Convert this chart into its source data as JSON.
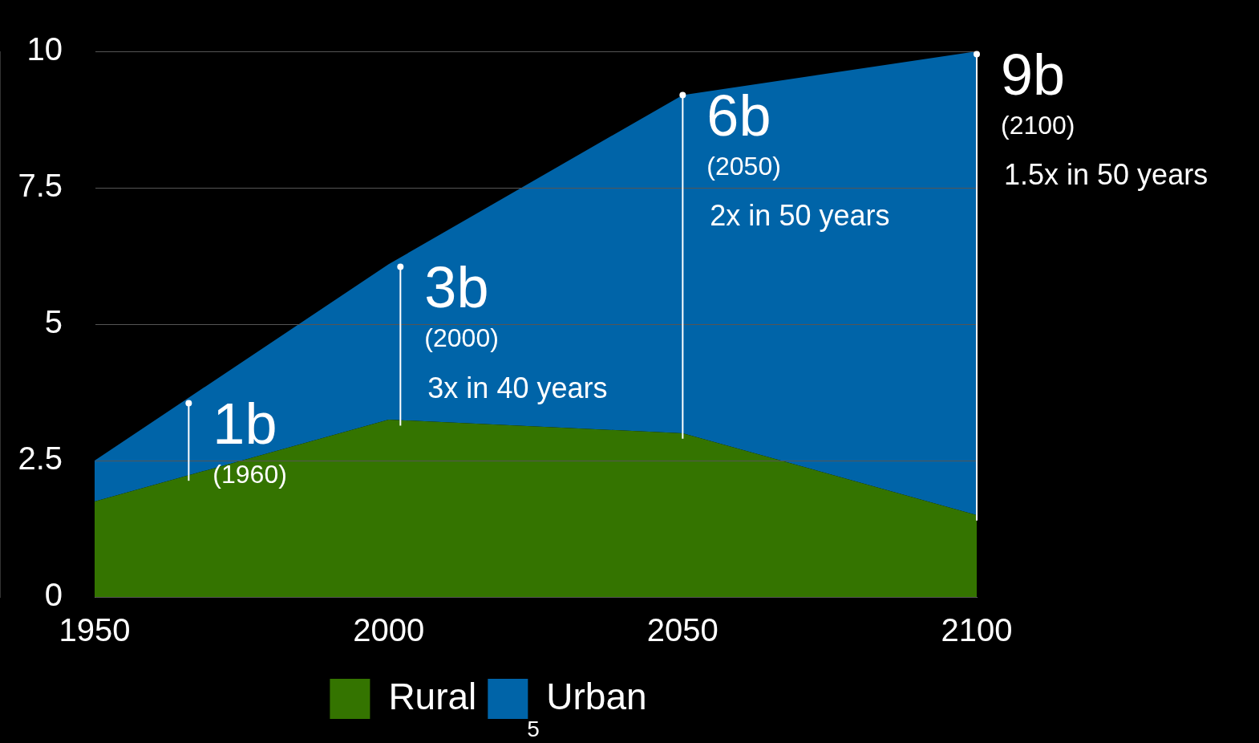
{
  "chart_data": {
    "type": "area",
    "stacked": true,
    "x": [
      1950,
      2000,
      2050,
      2100
    ],
    "series": [
      {
        "name": "Rural",
        "color": "#347400",
        "values": [
          1.75,
          3.25,
          3.0,
          1.5
        ]
      },
      {
        "name": "Urban",
        "color": "#0064a8",
        "values": [
          0.75,
          2.85,
          6.2,
          8.5
        ]
      }
    ],
    "xlim": [
      1950,
      2100
    ],
    "xticks": [
      1950,
      2000,
      2050,
      2100
    ],
    "ylim": [
      0,
      10
    ],
    "yticks": [
      0,
      2.5,
      5,
      7.5,
      10
    ],
    "grid": "y",
    "legend": "bottom",
    "annotations": [
      "5",
      {
        "text": "1b",
        "x": 1966,
        "y": 3.55
      },
      "(1960)",
      {
        "text": "3b",
        "x": 2002,
        "y": 6.05
      },
      "(2000)",
      "3x in 40 years",
      {
        "text": "6b",
        "x": 2050,
        "y": 9.2
      },
      "(2050)",
      "2x in 50 years",
      {
        "text": "9b",
        "x": 2100,
        "y": 9.95
      },
      "(2100)",
      "1.5x in 50 years"
    ]
  }
}
